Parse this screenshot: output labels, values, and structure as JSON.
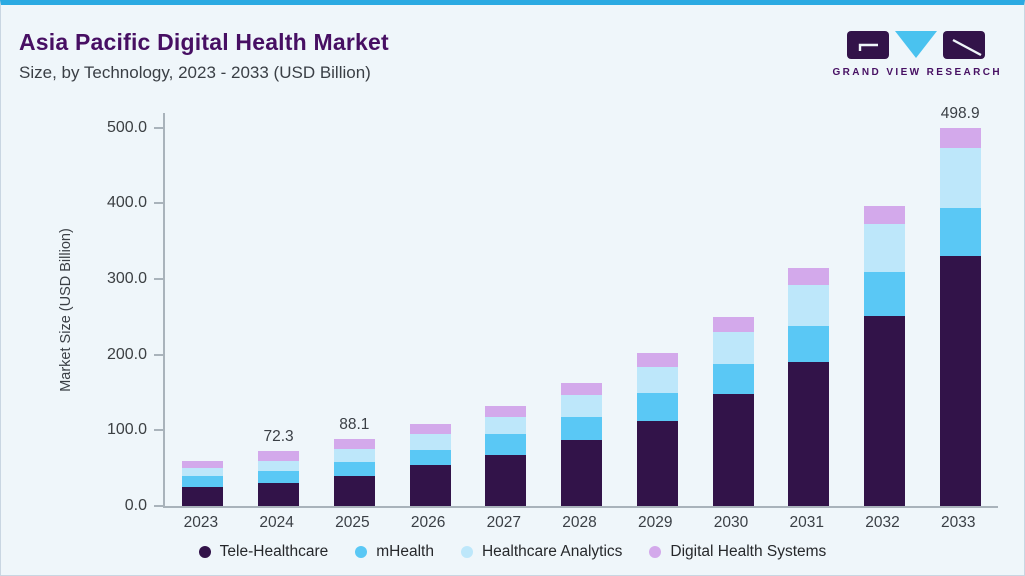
{
  "header": {
    "title": "Asia Pacific Digital Health Market",
    "subtitle": "Size, by Technology, 2023 - 2033 (USD Billion)"
  },
  "logo": {
    "wordmark": "GRAND VIEW RESEARCH",
    "purple": "#321349",
    "cyan": "#4AC2EF"
  },
  "chart_data": {
    "type": "bar",
    "stacked": true,
    "title": "Asia Pacific Digital Health Market Size, by Technology, 2023 - 2033 (USD Billion)",
    "xlabel": "",
    "ylabel": "Market Size (USD Billion)",
    "ylim": [
      0,
      500
    ],
    "yticks": [
      "0.0",
      "100.0",
      "200.0",
      "300.0",
      "400.0",
      "500.0"
    ],
    "grid": false,
    "legend_position": "bottom",
    "categories": [
      "2023",
      "2024",
      "2025",
      "2026",
      "2027",
      "2028",
      "2029",
      "2030",
      "2031",
      "2032",
      "2033"
    ],
    "series": [
      {
        "name": "Tele-Healthcare",
        "color": "#321349",
        "values": [
          25.6,
          30.2,
          40.1,
          53.8,
          67.4,
          87.8,
          112.4,
          147.4,
          190.0,
          251.2,
          330.5
        ]
      },
      {
        "name": "mHealth",
        "color": "#5AC8F5",
        "values": [
          14.0,
          16.3,
          18.5,
          20.8,
          27.8,
          29.9,
          37.0,
          40.5,
          48.4,
          57.4,
          62.7
        ]
      },
      {
        "name": "Healthcare Analytics",
        "color": "#BDE7FA",
        "values": [
          10.2,
          12.9,
          16.3,
          20.2,
          23.0,
          29.1,
          34.4,
          41.9,
          53.8,
          63.8,
          80.1
        ]
      },
      {
        "name": "Digital Health Systems",
        "color": "#D3A9EB",
        "values": [
          10.2,
          12.9,
          13.2,
          14.1,
          14.1,
          15.9,
          18.5,
          20.1,
          22.0,
          23.8,
          25.6
        ]
      }
    ],
    "totals": [
      60.0,
      72.3,
      88.1,
      108.9,
      132.3,
      162.7,
      202.3,
      249.9,
      314.2,
      396.2,
      498.9
    ],
    "bar_labels": {
      "2024": "72.3",
      "2025": "88.1",
      "2033": "498.9"
    }
  }
}
